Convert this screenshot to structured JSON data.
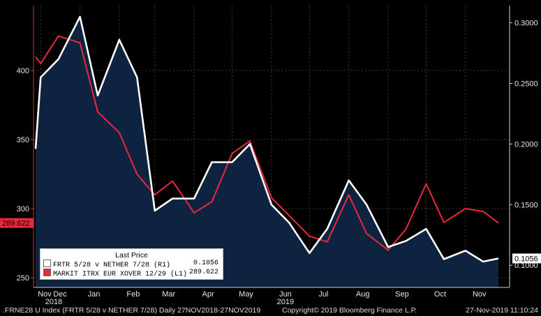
{
  "chart_data": {
    "type": "line",
    "left_axis": {
      "ticks": [
        250,
        300,
        350,
        400
      ],
      "ylim": [
        243,
        447
      ]
    },
    "right_axis": {
      "ticks": [
        "0.1000",
        "0.1500",
        "0.2000",
        "0.2500",
        "0.3000"
      ],
      "tick_values": [
        0.1,
        0.15,
        0.2,
        0.25,
        0.3
      ],
      "ylim": [
        0.0817,
        0.3142
      ]
    },
    "x_labels": [
      {
        "label": "Nov",
        "sub": ""
      },
      {
        "label": "Dec",
        "sub": "2018"
      },
      {
        "label": "Jan",
        "sub": ""
      },
      {
        "label": "Feb",
        "sub": ""
      },
      {
        "label": "Mar",
        "sub": ""
      },
      {
        "label": "Apr",
        "sub": ""
      },
      {
        "label": "May",
        "sub": ""
      },
      {
        "label": "Jun",
        "sub": "2019"
      },
      {
        "label": "Jul",
        "sub": ""
      },
      {
        "label": "Aug",
        "sub": ""
      },
      {
        "label": "Sep",
        "sub": ""
      },
      {
        "label": "Oct",
        "sub": ""
      },
      {
        "label": "Nov",
        "sub": ""
      }
    ],
    "x_points": [
      "27-Nov-2018",
      "01-Dec-2018",
      "15-Dec-2018",
      "01-Jan-2019",
      "15-Jan-2019",
      "01-Feb-2019",
      "15-Feb-2019",
      "01-Mar-2019",
      "15-Mar-2019",
      "01-Apr-2019",
      "15-Apr-2019",
      "01-May-2019",
      "15-May-2019",
      "01-Jun-2019",
      "15-Jun-2019",
      "01-Jul-2019",
      "15-Jul-2019",
      "01-Aug-2019",
      "15-Aug-2019",
      "01-Sep-2019",
      "15-Sep-2019",
      "01-Oct-2019",
      "15-Oct-2019",
      "01-Nov-2019",
      "15-Nov-2019",
      "27-Nov-2019"
    ],
    "series": [
      {
        "name": "FRTR 5/28 v NETHER 7/28  (R1)",
        "axis": "right",
        "color": "#ffffff",
        "last_value": "0.1056",
        "values": [
          0.196,
          0.255,
          0.27,
          0.305,
          0.24,
          0.286,
          0.255,
          0.145,
          0.155,
          0.155,
          0.185,
          0.185,
          0.2,
          0.15,
          0.135,
          0.11,
          0.13,
          0.17,
          0.15,
          0.115,
          0.12,
          0.13,
          0.105,
          0.112,
          0.103,
          0.1056
        ]
      },
      {
        "name": "MARKIT ITRX EUR XOVER 12/29  (L1)",
        "axis": "left",
        "color": "#e8293b",
        "last_value": "289.622",
        "values": [
          410,
          405,
          425,
          420,
          370,
          355,
          325,
          310,
          320,
          297,
          305,
          340,
          349,
          308,
          295,
          280,
          276,
          310,
          282,
          270,
          285,
          318,
          290,
          300,
          298,
          289.622
        ]
      }
    ],
    "axis_markers": [
      {
        "axis": "left",
        "label": "289.622",
        "value": 289.622,
        "color": "#e8293b"
      },
      {
        "axis": "right",
        "label": "0.1056",
        "value": 0.1056,
        "color": "#ffffff"
      }
    ],
    "legend": {
      "header": "Last Price",
      "placement": "bottom-left"
    },
    "area_fill": "#0e2340",
    "grid": true
  },
  "footer": {
    "left": ".FRNE28 U Index (FRTR 5/28 v NETHER 7/28)  Daily 27NOV2018-27NOV2019",
    "center": "Copyright© 2019 Bloomberg Finance L.P.",
    "right": "27-Nov-2019 11:10:24"
  }
}
